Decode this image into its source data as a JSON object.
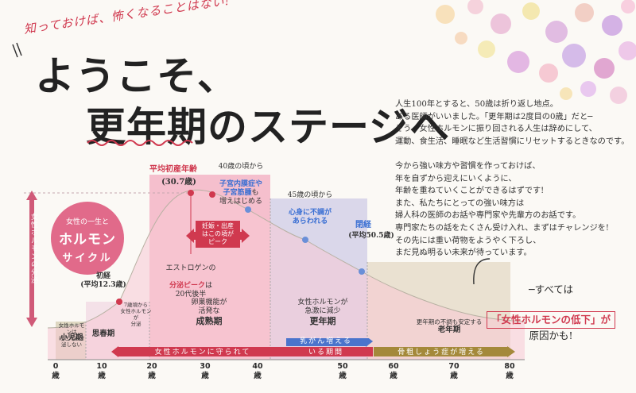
{
  "header": {
    "tagline": "知っておけば、怖くなることはない!",
    "title_line1": "ようこそ、",
    "title_line2": "更年期のステージへ"
  },
  "intro": "人生100年とすると、50歳は折り返し地点。\nある医師がいいました。「更年期は2度目の0歳」だと─\nそう、女性ホルモンに振り回される人生は辞めにして、\n運動、食生活、睡眠など生活習慣にリセットするときなのです。\n\n今から強い味方や習慣を作っておけば、\n年を自ずから迎えにいくように、\n年齢を重ねていくことができるはずです!\nまた、私たちにとっての強い味方は\n婦人科の医師のお話や専門家や先輩方のお話です。\n専門家たちの話をたくさん受け入れ、まずはチャレンジを!\nその先には重い荷物をようやく下ろし、\nまだ見ぬ明るい未来が待っています。",
  "badge": {
    "line1": "女性の一生と",
    "line2": "ホルモン",
    "line3": "サイクル"
  },
  "axis_label": "女性ホルモンの分泌",
  "annotations": {
    "menarche": "初経\n(平均12.3歳)",
    "first_birth_label": "平均初産年齢",
    "first_birth_value": "(30.7歳)",
    "at40": "40歳の頃から",
    "at40_b": "子宮内膜症や\n子宮筋腫",
    "at40_c": "も\n増えはじめる",
    "at45": "45歳の頃から",
    "at45_b": "心身に不調が\nあらわれる",
    "menopause": "閉経",
    "menopause_avg": "(平均50.5歳)",
    "estrogen_a": "エストロゲンの",
    "estrogen_b": "分泌ピーク",
    "estrogen_c": "は\n20代後半",
    "pregnancy": "妊娠・出産\nはこの頃が\nピーク"
  },
  "stages": {
    "childhood": "小児期",
    "childhood_note": "女性ホルモンは\nほとんど分泌しない",
    "puberty": "思春期",
    "puberty_note": "7歳頃から\n女性ホルモンが\n分泌",
    "maturity_note": "卵巣機能が\n活発な",
    "maturity": "成熟期",
    "meno_note": "女性ホルモンが\n急激に減少",
    "meno": "更年期",
    "old_note": "更年期の不調も安定する",
    "old": "老年期"
  },
  "bars": {
    "protected": "女性ホルモンに守られて",
    "cancer": "乳がん増える",
    "overlap": "いる期間",
    "osteo": "骨粗しょう症が増える"
  },
  "ages": [
    "0",
    "10",
    "20",
    "30",
    "40",
    "50",
    "60",
    "70",
    "80"
  ],
  "age_unit": "歳",
  "conclusion": {
    "line1": "─すべては",
    "line2": "「女性ホルモンの低下」が",
    "line3": "原因かも!"
  },
  "colors": {
    "pink": "#d0394f",
    "blue": "#4a74cc",
    "olive": "#a4893a",
    "curve_fill": "#f7c9d4"
  }
}
